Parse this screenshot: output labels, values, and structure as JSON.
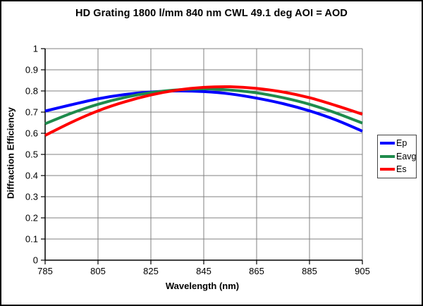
{
  "chart_data": {
    "type": "line",
    "title": "HD Grating 1800 l/mm 840 nm CWL 49.1 deg AOI = AOD",
    "xlabel": "Wavelength (nm)",
    "ylabel": "Diffraction Efficiency",
    "xlim": [
      785,
      905
    ],
    "ylim": [
      0,
      1
    ],
    "x_ticks": [
      785,
      805,
      825,
      845,
      865,
      885,
      905
    ],
    "y_ticks": [
      0,
      0.1,
      0.2,
      0.3,
      0.4,
      0.5,
      0.6,
      0.7,
      0.8,
      0.9,
      1
    ],
    "y_tick_labels": [
      "0",
      "0.1",
      "0.2",
      "0.3",
      "0.4",
      "0.5",
      "0.6",
      "0.7",
      "0.8",
      "0.9",
      "1"
    ],
    "grid": true,
    "grid_color": "#808080",
    "axis_color": "#000000",
    "legend_position": "right",
    "x": [
      785,
      795,
      805,
      815,
      825,
      835,
      845,
      855,
      865,
      875,
      885,
      895,
      905
    ],
    "series": [
      {
        "name": "Ep",
        "color": "#0000FF",
        "values": [
          0.705,
          0.735,
          0.763,
          0.783,
          0.795,
          0.8,
          0.797,
          0.786,
          0.766,
          0.74,
          0.706,
          0.663,
          0.61
        ]
      },
      {
        "name": "Eavg",
        "color": "#1F8B4C",
        "values": [
          0.645,
          0.695,
          0.737,
          0.769,
          0.792,
          0.805,
          0.81,
          0.804,
          0.791,
          0.768,
          0.737,
          0.696,
          0.648
        ]
      },
      {
        "name": "Es",
        "color": "#FF0000",
        "values": [
          0.59,
          0.652,
          0.706,
          0.748,
          0.781,
          0.804,
          0.817,
          0.82,
          0.812,
          0.795,
          0.768,
          0.731,
          0.69
        ]
      }
    ]
  }
}
